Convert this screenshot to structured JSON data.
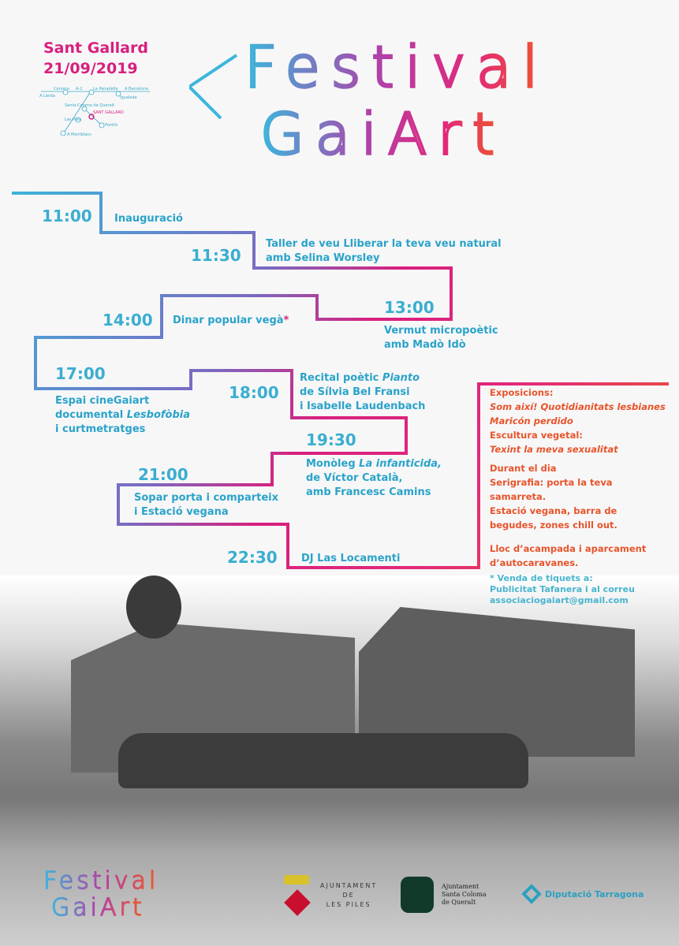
{
  "header": {
    "place": "Sant Gallard",
    "date": "21/09/2019",
    "title_line1": "Festival",
    "title_line2": "GaiArt"
  },
  "map": {
    "labels": [
      "A Lleida",
      "Cervera",
      "A-2",
      "La Panadella",
      "A Barcelona",
      "Igualada",
      "Santa Coloma de Queralt",
      "SANT GALLARD",
      "Les Piles",
      "Pontils",
      "A Montblanc"
    ]
  },
  "schedule": [
    {
      "time": "11:00",
      "text": "Inauguració"
    },
    {
      "time": "11:30",
      "text": "Taller de veu Lliberar la teva veu natural",
      "text2": "amb Selina Worsley"
    },
    {
      "time": "13:00",
      "text": "Vermut micropoètic",
      "text2": "amb Madò Idò"
    },
    {
      "time": "14:00",
      "text": "Dinar popular vegà",
      "mark": "*"
    },
    {
      "time": "17:00",
      "text": "Espai cineGaiart",
      "text2a": "documental ",
      "text2b": "Lesbofòbia",
      "text3": "i curtmetratges"
    },
    {
      "time": "18:00",
      "text1a": "Recital poètic ",
      "text1b": "Pianto",
      "text2": "de Sílvia Bel Fransi",
      "text3": "i Isabelle Laudenbach"
    },
    {
      "time": "19:30",
      "text1a": "Monòleg ",
      "text1b": "La infanticida,",
      "text2": "de Víctor Català,",
      "text3": "amb Francesc Camins"
    },
    {
      "time": "21:00",
      "text": "Sopar porta i comparteix",
      "text2": "i Estació vegana"
    },
    {
      "time": "22:30",
      "text": "DJ Las Locamenti"
    }
  ],
  "side": {
    "l1": "Exposicions:",
    "l2": "Som així! Quotidianitats lesbianes",
    "l3": "Maricón perdido",
    "l4": "Escultura vegetal:",
    "l5": "Texint la meva sexualitat",
    "l6": "Durant el dia",
    "l7": "Serigrafia: porta la teva",
    "l8": "samarreta.",
    "l9": "Estació vegana, barra de",
    "l10": "begudes, zones chill out.",
    "l11": "Lloc d’acampada i aparcament",
    "l12": "d’autocaravanes."
  },
  "note": {
    "l1": "* Venda de tiquets a:",
    "l2": "Publicitat Tafanera i al correu",
    "l3": "associaciogaiart@gmail.com"
  },
  "footer": {
    "logo_line1": "Festival",
    "logo_line2": "GaiArt",
    "piles1": "AJUNTAMENT",
    "piles2": "DE",
    "piles3": "LES PILES",
    "sc1": "Ajuntament",
    "sc2": "Santa Coloma",
    "sc3": "de Queralt",
    "dip": "Diputació Tarragona"
  },
  "colors": {
    "blue": "#3aaed0",
    "magenta": "#d8207e",
    "orange": "#e8542a"
  }
}
